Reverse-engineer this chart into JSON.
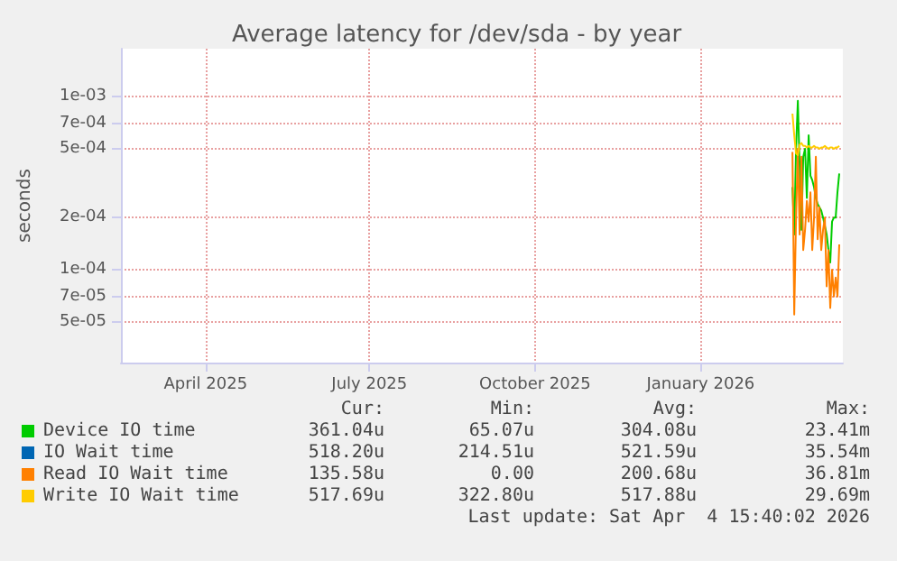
{
  "chart_data": {
    "type": "line",
    "title": "Average latency for /dev/sda - by year",
    "ylabel": "seconds",
    "log": "y",
    "grid": true,
    "legend": "bottom left",
    "marker": "none",
    "line_style": "solid",
    "xlim": [
      "2025-02-27",
      "2026-04-04"
    ],
    "xticks": [
      {
        "value": "2025-04-15",
        "label": "April 2025"
      },
      {
        "value": "2025-07-15",
        "label": "July 2025"
      },
      {
        "value": "2025-10-15",
        "label": "October 2025"
      },
      {
        "value": "2026-01-15",
        "label": "January 2026"
      }
    ],
    "ylim": [
      2.9e-05,
      0.0019
    ],
    "yticks": [
      {
        "value": 5e-05,
        "label": "5e-05"
      },
      {
        "value": 7e-05,
        "label": "7e-05"
      },
      {
        "value": 0.0001,
        "label": "1e-04"
      },
      {
        "value": 0.0002,
        "label": "2e-04"
      },
      {
        "value": 0.0005,
        "label": "5e-04"
      },
      {
        "value": 0.0007,
        "label": "7e-04"
      },
      {
        "value": 0.001,
        "label": "1e-03"
      }
    ],
    "x": [
      "2026-03-07",
      "2026-03-08",
      "2026-03-09",
      "2026-03-10",
      "2026-03-11",
      "2026-03-12",
      "2026-03-13",
      "2026-03-14",
      "2026-03-15",
      "2026-03-16",
      "2026-03-17",
      "2026-03-18",
      "2026-03-19",
      "2026-03-20",
      "2026-03-21",
      "2026-03-22",
      "2026-03-23",
      "2026-03-24",
      "2026-03-25",
      "2026-03-26",
      "2026-03-27",
      "2026-03-28",
      "2026-03-29",
      "2026-03-30",
      "2026-03-31",
      "2026-04-01",
      "2026-04-02"
    ],
    "series": [
      {
        "name": "Device IO time",
        "color": "#00cc00",
        "values": [
          0.0003,
          0.00016,
          0.0005,
          0.00095,
          0.0004,
          0.00017,
          0.00045,
          0.0005,
          0.00026,
          0.0006,
          0.00035,
          0.00033,
          0.0003,
          0.00026,
          0.00024,
          0.00023,
          0.00022,
          0.0002,
          0.00018,
          0.00016,
          0.00013,
          0.00011,
          0.00019,
          0.0002,
          0.0002,
          0.00028,
          0.00036
        ]
      },
      {
        "name": "IO Wait time",
        "color": "#0066b3",
        "values": [
          null,
          null,
          null,
          null,
          null,
          null,
          null,
          null,
          null,
          null,
          null,
          null,
          null,
          null,
          null,
          null,
          null,
          null,
          null,
          null,
          null,
          null,
          null,
          null,
          null,
          null,
          null
        ]
      },
      {
        "name": "Read IO Wait time",
        "color": "#ff8000",
        "values": [
          0.00048,
          5.5e-05,
          0.0002,
          0.0005,
          0.00016,
          0.00045,
          0.00013,
          0.00017,
          0.00025,
          0.00019,
          0.00028,
          0.00013,
          0.0002,
          0.00045,
          0.00015,
          0.00023,
          0.00013,
          0.00017,
          0.0002,
          8e-05,
          0.00013,
          6e-05,
          0.0001,
          7e-05,
          9e-05,
          7e-05,
          0.00014
        ]
      },
      {
        "name": "Write IO Wait time",
        "color": "#ffcc00",
        "values": [
          0.0008,
          0.0006,
          0.00047,
          0.00046,
          0.00053,
          0.00054,
          0.00052,
          0.00052,
          0.00051,
          0.00052,
          0.00051,
          0.00051,
          0.00052,
          0.00051,
          0.00051,
          0.0005,
          0.00051,
          0.00051,
          0.00052,
          0.00051,
          0.0005,
          0.00051,
          0.00051,
          0.0005,
          0.00051,
          0.00051,
          0.00052
        ]
      }
    ],
    "annotations": [
      "Cur:",
      "Min:",
      "Avg:",
      "Max:",
      "361.04u",
      "65.07u",
      "304.08u",
      "23.41m",
      "518.20u",
      "214.51u",
      "521.59u",
      "35.54m",
      "135.58u",
      "0.00",
      "200.68u",
      "36.81m",
      "517.69u",
      "322.80u",
      "517.88u",
      "29.69m",
      "Last update: Sat Apr  4 15:40:02 2026"
    ]
  }
}
